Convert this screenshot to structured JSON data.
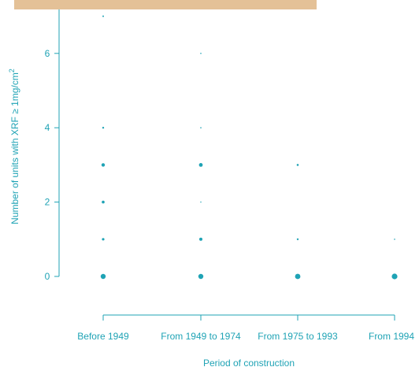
{
  "header_band_color": "#e4c197",
  "chart_data": {
    "type": "scatter",
    "xlabel": "Period of construction",
    "ylabel_main": "Number of units with XRF ≥ 1mg/cm",
    "ylabel_superscript": "2",
    "categories": [
      "Before 1949",
      "From 1949 to 1974",
      "From 1975 to 1993",
      "From 1994"
    ],
    "y_ticks": [
      "0",
      "2",
      "4",
      "6"
    ],
    "ylim": [
      -0.5,
      7.2
    ],
    "grid": false,
    "color": "#1fa3b5",
    "points": [
      {
        "category": "Before 1949",
        "y": 0,
        "weight": 3.2
      },
      {
        "category": "Before 1949",
        "y": 1,
        "weight": 1.6
      },
      {
        "category": "Before 1949",
        "y": 2,
        "weight": 1.8
      },
      {
        "category": "Before 1949",
        "y": 3,
        "weight": 2.2
      },
      {
        "category": "Before 1949",
        "y": 4,
        "weight": 1.2
      },
      {
        "category": "Before 1949",
        "y": 7,
        "weight": 1.0
      },
      {
        "category": "From 1949 to 1974",
        "y": 0,
        "weight": 3.2
      },
      {
        "category": "From 1949 to 1974",
        "y": 1,
        "weight": 2.0
      },
      {
        "category": "From 1949 to 1974",
        "y": 2,
        "weight": 0.7
      },
      {
        "category": "From 1949 to 1974",
        "y": 3,
        "weight": 2.4
      },
      {
        "category": "From 1949 to 1974",
        "y": 4,
        "weight": 0.8
      },
      {
        "category": "From 1949 to 1974",
        "y": 6,
        "weight": 0.8
      },
      {
        "category": "From 1975 to 1993",
        "y": 0,
        "weight": 3.4
      },
      {
        "category": "From 1975 to 1993",
        "y": 1,
        "weight": 1.2
      },
      {
        "category": "From 1975 to 1993",
        "y": 3,
        "weight": 1.3
      },
      {
        "category": "From 1994",
        "y": 0,
        "weight": 3.6
      },
      {
        "category": "From 1994",
        "y": 1,
        "weight": 0.8
      }
    ]
  }
}
